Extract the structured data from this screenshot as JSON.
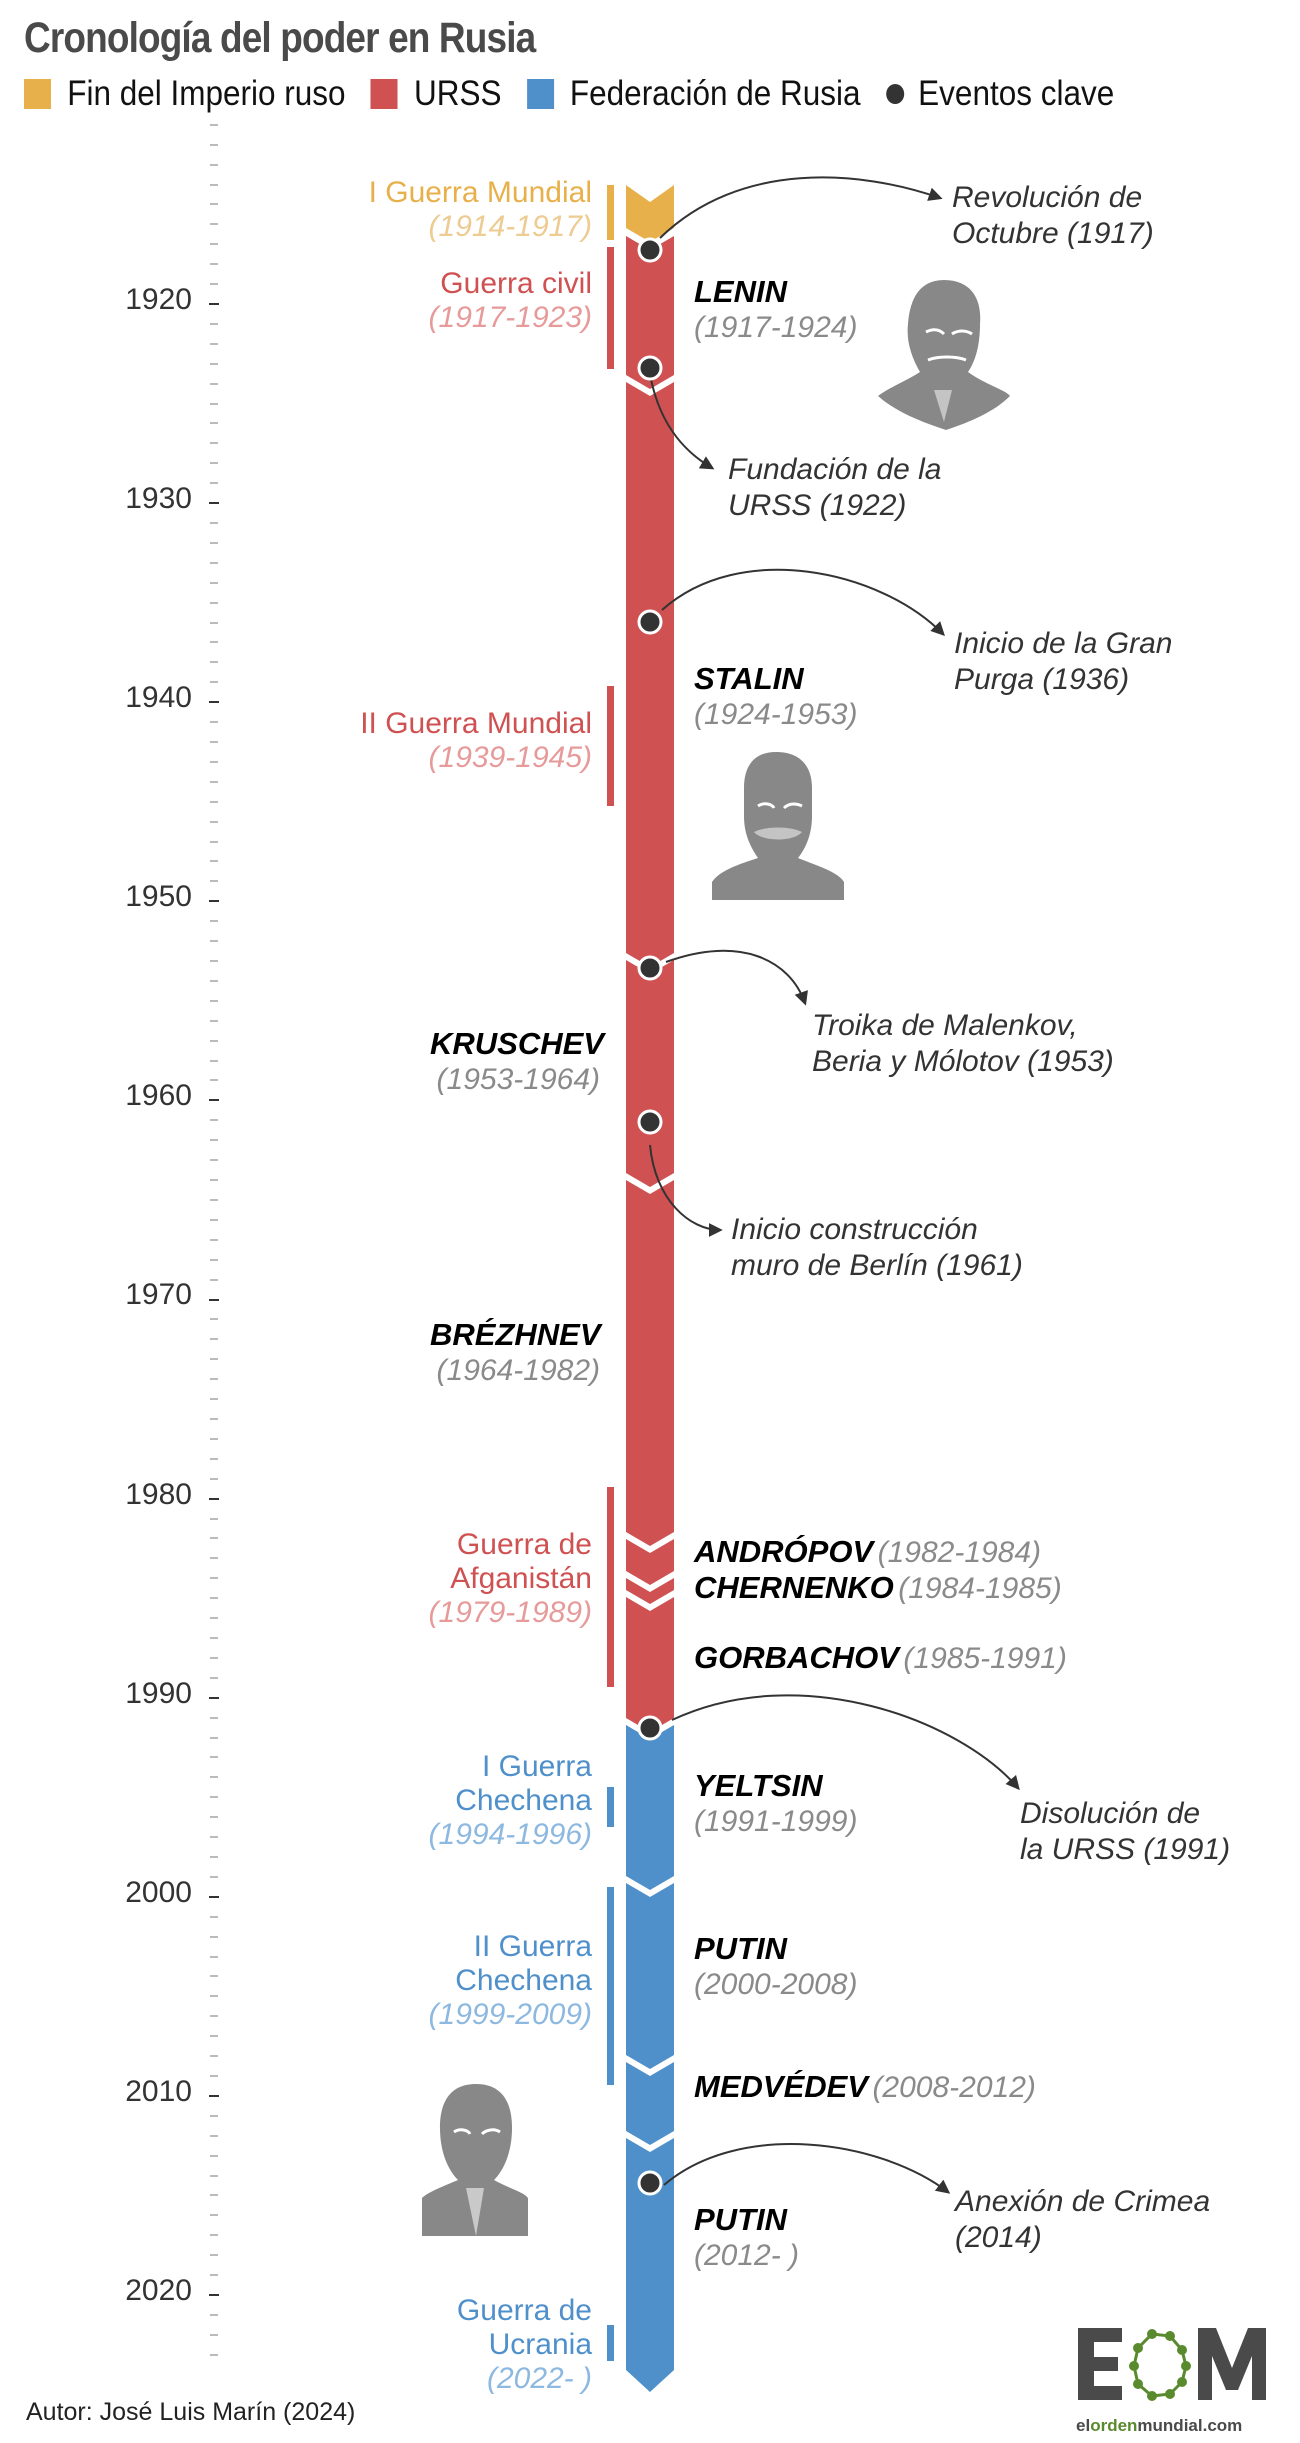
{
  "header": {
    "title": "Cronología del poder en Rusia"
  },
  "legend": [
    {
      "label": "Fin del Imperio ruso",
      "color": "#E8B04B",
      "shape": "square"
    },
    {
      "label": "URSS",
      "color": "#CF5151",
      "shape": "square"
    },
    {
      "label": "Federación de Rusia",
      "color": "#4F90CB",
      "shape": "square"
    },
    {
      "label": "Eventos clave",
      "color": "#333333",
      "shape": "dot"
    }
  ],
  "axis": {
    "ticks": [
      "1920",
      "1930",
      "1940",
      "1950",
      "1960",
      "1970",
      "1980",
      "1990",
      "2000",
      "2010",
      "2020"
    ]
  },
  "wars": [
    {
      "name": "I Guerra Mundial",
      "years": "(1914-1917)",
      "color": "#E8B04B",
      "years_color": "#EDCB91"
    },
    {
      "name": "Guerra civil",
      "years": "(1917-1923)",
      "color": "#CF5151",
      "years_color": "#E79A9A"
    },
    {
      "name": "II Guerra Mundial",
      "years": "(1939-1945)",
      "color": "#CF5151",
      "years_color": "#E79A9A"
    },
    {
      "name_line1": "Guerra de",
      "name_line2": "Afganistán",
      "years": "(1979-1989)",
      "color": "#CF5151",
      "years_color": "#E79A9A"
    },
    {
      "name_line1": "I Guerra",
      "name_line2": "Chechena",
      "years": "(1994-1996)",
      "color": "#4F90CB",
      "years_color": "#8DB8E0"
    },
    {
      "name_line1": "II Guerra",
      "name_line2": "Chechena",
      "years": "(1999-2009)",
      "color": "#4F90CB",
      "years_color": "#8DB8E0"
    },
    {
      "name_line1": "Guerra de",
      "name_line2": "Ucrania",
      "years": "(2022- )",
      "color": "#4F90CB",
      "years_color": "#8DB8E0"
    }
  ],
  "leaders": [
    {
      "name": "LENIN",
      "years": "(1917-1924)"
    },
    {
      "name": "STALIN",
      "years": "(1924-1953)"
    },
    {
      "name": "KRUSCHEV",
      "years": "(1953-1964)"
    },
    {
      "name": "BRÉZHNEV",
      "years": "(1964-1982)"
    },
    {
      "name": "ANDRÓPOV",
      "years": "(1982-1984)"
    },
    {
      "name": "CHERNENKO",
      "years": "(1984-1985)"
    },
    {
      "name": "GORBACHOV",
      "years": "(1985-1991)"
    },
    {
      "name": "YELTSIN",
      "years": "(1991-1999)"
    },
    {
      "name": "PUTIN",
      "years": "(2000-2008)"
    },
    {
      "name": "MEDVÉDEV",
      "years": "(2008-2012)"
    },
    {
      "name": "PUTIN",
      "years": "(2012- )"
    }
  ],
  "events": [
    {
      "line1": "Revolución de",
      "line2": "Octubre (1917)"
    },
    {
      "line1": "Fundación de la",
      "line2": "URSS (1922)"
    },
    {
      "line1": "Inicio de la Gran",
      "line2": "Purga (1936)"
    },
    {
      "line1": "Troika de Malenkov,",
      "line2": "Beria y Mólotov (1953)"
    },
    {
      "line1": "Inicio construcción",
      "line2": "muro de Berlín (1961)"
    },
    {
      "line1": "Disolución de",
      "line2": "la URSS (1991)"
    },
    {
      "line1": "Anexión de Crimea",
      "line2": "(2014)"
    }
  ],
  "footer": {
    "author": "Autor: José Luis Marín (2024)",
    "logo_text": "EOM",
    "logo_domain_parts": [
      "el",
      "orden",
      "mundial",
      ".com"
    ]
  },
  "chart_data": {
    "type": "timeline",
    "title": "Cronología del poder en Rusia",
    "axis_range": [
      1910,
      2024
    ],
    "axis_ticks": [
      1920,
      1930,
      1940,
      1950,
      1960,
      1970,
      1980,
      1990,
      2000,
      2010,
      2020
    ],
    "periods": [
      {
        "name": "Fin del Imperio ruso",
        "start": 1914,
        "end": 1917,
        "color": "#E8B04B"
      },
      {
        "name": "URSS",
        "start": 1917,
        "end": 1991,
        "color": "#CF5151"
      },
      {
        "name": "Federación de Rusia",
        "start": 1991,
        "end": 2024,
        "color": "#4F90CB"
      }
    ],
    "leaders": [
      {
        "name": "Lenin",
        "start": 1917,
        "end": 1924
      },
      {
        "name": "Stalin",
        "start": 1924,
        "end": 1953
      },
      {
        "name": "Kruschev",
        "start": 1953,
        "end": 1964
      },
      {
        "name": "Brézhnev",
        "start": 1964,
        "end": 1982
      },
      {
        "name": "Andrópov",
        "start": 1982,
        "end": 1984
      },
      {
        "name": "Chernenko",
        "start": 1984,
        "end": 1985
      },
      {
        "name": "Gorbachov",
        "start": 1985,
        "end": 1991
      },
      {
        "name": "Yeltsin",
        "start": 1991,
        "end": 1999
      },
      {
        "name": "Putin",
        "start": 2000,
        "end": 2008
      },
      {
        "name": "Medvédev",
        "start": 2008,
        "end": 2012
      },
      {
        "name": "Putin",
        "start": 2012,
        "end": null
      }
    ],
    "wars": [
      {
        "name": "I Guerra Mundial",
        "start": 1914,
        "end": 1917
      },
      {
        "name": "Guerra civil",
        "start": 1917,
        "end": 1923
      },
      {
        "name": "II Guerra Mundial",
        "start": 1939,
        "end": 1945
      },
      {
        "name": "Guerra de Afganistán",
        "start": 1979,
        "end": 1989
      },
      {
        "name": "I Guerra Chechena",
        "start": 1994,
        "end": 1996
      },
      {
        "name": "II Guerra Chechena",
        "start": 1999,
        "end": 2009
      },
      {
        "name": "Guerra de Ucrania",
        "start": 2022,
        "end": null
      }
    ],
    "key_events": [
      {
        "label": "Revolución de Octubre",
        "year": 1917
      },
      {
        "label": "Fundación de la URSS",
        "year": 1922
      },
      {
        "label": "Inicio de la Gran Purga",
        "year": 1936
      },
      {
        "label": "Troika de Malenkov, Beria y Mólotov",
        "year": 1953
      },
      {
        "label": "Inicio construcción muro de Berlín",
        "year": 1961
      },
      {
        "label": "Disolución de la URSS",
        "year": 1991
      },
      {
        "label": "Anexión de Crimea",
        "year": 2014
      }
    ]
  }
}
